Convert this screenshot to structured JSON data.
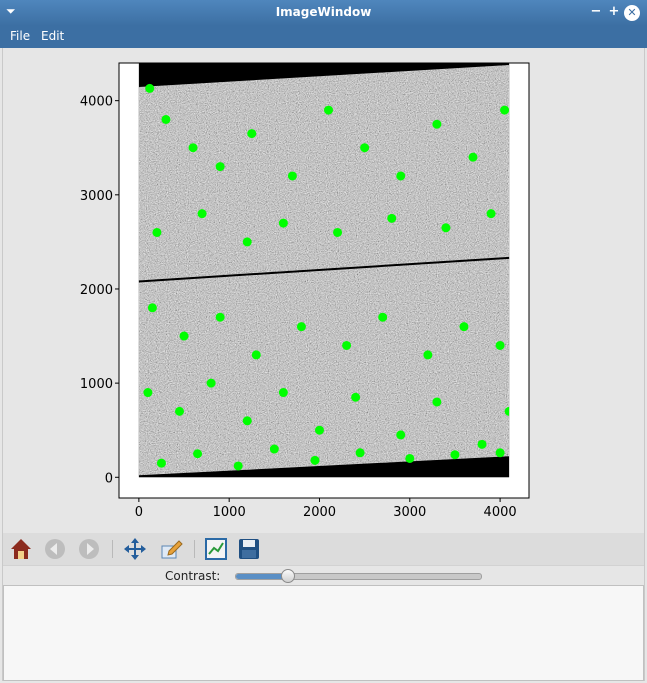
{
  "window": {
    "title": "ImageWindow"
  },
  "menu": {
    "file": "File",
    "edit": "Edit"
  },
  "chart_data": {
    "type": "scatter",
    "title": "",
    "xlabel": "",
    "ylabel": "",
    "xlim": [
      -220,
      4320
    ],
    "ylim": [
      -220,
      4400
    ],
    "x_ticks": [
      0,
      1000,
      2000,
      3000,
      4000
    ],
    "y_ticks": [
      0,
      1000,
      2000,
      3000,
      4000
    ],
    "x_tick_labels": [
      "0",
      "1000",
      "2000",
      "3000",
      "4000"
    ],
    "y_tick_labels": [
      "0",
      "1000",
      "2000",
      "3000",
      "4000"
    ],
    "series": [
      {
        "values": [
          [
            120,
            4130
          ],
          [
            300,
            3800
          ],
          [
            600,
            3500
          ],
          [
            900,
            3300
          ],
          [
            1250,
            3650
          ],
          [
            1700,
            3200
          ],
          [
            2100,
            3900
          ],
          [
            2500,
            3500
          ],
          [
            2900,
            3200
          ],
          [
            3300,
            3750
          ],
          [
            3700,
            3400
          ],
          [
            4050,
            3900
          ],
          [
            200,
            2600
          ],
          [
            700,
            2800
          ],
          [
            1200,
            2500
          ],
          [
            1600,
            2700
          ],
          [
            2200,
            2600
          ],
          [
            2800,
            2750
          ],
          [
            3400,
            2650
          ],
          [
            3900,
            2800
          ],
          [
            150,
            1800
          ],
          [
            500,
            1500
          ],
          [
            900,
            1700
          ],
          [
            1300,
            1300
          ],
          [
            1800,
            1600
          ],
          [
            2300,
            1400
          ],
          [
            2700,
            1700
          ],
          [
            3200,
            1300
          ],
          [
            3600,
            1600
          ],
          [
            4000,
            1400
          ],
          [
            100,
            900
          ],
          [
            450,
            700
          ],
          [
            800,
            1000
          ],
          [
            1200,
            600
          ],
          [
            1600,
            900
          ],
          [
            2000,
            500
          ],
          [
            2400,
            850
          ],
          [
            2900,
            450
          ],
          [
            3300,
            800
          ],
          [
            3800,
            350
          ],
          [
            4100,
            700
          ],
          [
            250,
            150
          ],
          [
            650,
            250
          ],
          [
            1100,
            120
          ],
          [
            1500,
            300
          ],
          [
            1950,
            180
          ],
          [
            2450,
            260
          ],
          [
            3000,
            200
          ],
          [
            3500,
            240
          ],
          [
            4000,
            260
          ]
        ]
      }
    ],
    "image_extent": {
      "x": [
        0,
        4100
      ],
      "y": [
        0,
        4400
      ]
    },
    "colors": {
      "points": "#00ff00",
      "image_noise": "#8a8a8a",
      "background": "#000000"
    }
  },
  "toolbar": {
    "home": "home-icon",
    "back": "back-arrow-icon",
    "forward": "forward-arrow-icon",
    "pan": "move-arrows-icon",
    "zoom_edit": "edit-axes-icon",
    "subplots": "configure-subplots-icon",
    "save": "floppy-save-icon"
  },
  "contrast": {
    "label": "Contrast:",
    "value": 0.21
  }
}
